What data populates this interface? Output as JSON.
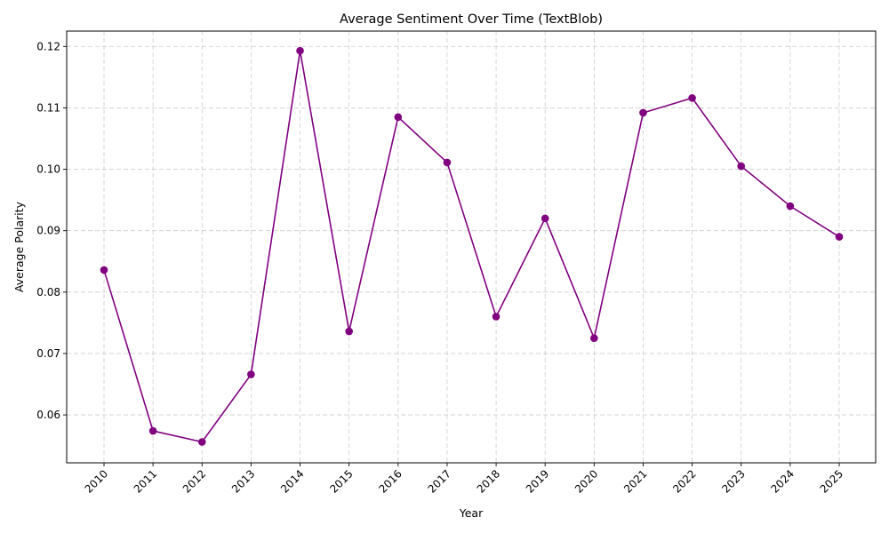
{
  "chart_data": {
    "type": "line",
    "title": "Average Sentiment Over Time (TextBlob)",
    "xlabel": "Year",
    "ylabel": "Average Polarity",
    "categories": [
      "2010",
      "2011",
      "2012",
      "2013",
      "2014",
      "2015",
      "2016",
      "2017",
      "2018",
      "2019",
      "2020",
      "2021",
      "2022",
      "2023",
      "2024",
      "2025"
    ],
    "series": [
      {
        "values": [
          0.0836,
          0.0574,
          0.0556,
          0.0666,
          0.1193,
          0.0736,
          0.1085,
          0.1011,
          0.076,
          0.092,
          0.0725,
          0.1092,
          0.1116,
          0.1005,
          0.094,
          0.089
        ],
        "color": "#800080",
        "marker": "circle"
      }
    ],
    "ylim": [
      0.0522,
      0.1225
    ],
    "yticks": [
      "0.06",
      "0.07",
      "0.08",
      "0.09",
      "0.10",
      "0.11",
      "0.12"
    ],
    "grid": true,
    "x_tick_rotation": "45deg"
  }
}
